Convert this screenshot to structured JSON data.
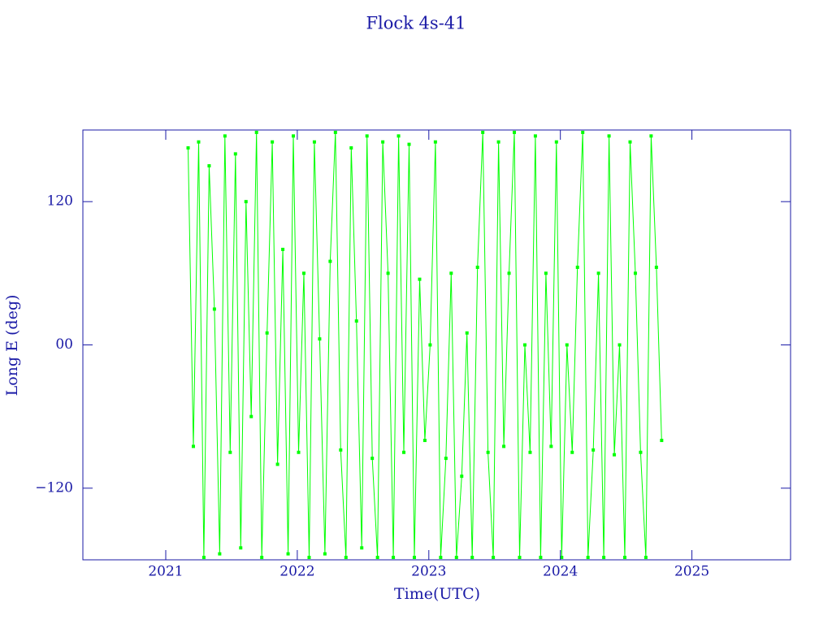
{
  "chart_data": {
    "type": "line",
    "title": "Flock 4s-41",
    "x_label": "Time(UTC)",
    "y_label": "Long E (deg)",
    "color": "#00ff00",
    "xlim": [
      2020.37,
      2025.75
    ],
    "xticks": [
      2021,
      2022,
      2023,
      2024,
      2025
    ],
    "ylim": [
      -180,
      180
    ],
    "yticks": [
      {
        "value": 120,
        "label": "120"
      },
      {
        "value": 0,
        "label": "00"
      },
      {
        "value": -120,
        "label": "−120"
      }
    ],
    "x": [
      2021.17,
      2021.21,
      2021.25,
      2021.29,
      2021.33,
      2021.37,
      2021.41,
      2021.45,
      2021.49,
      2021.53,
      2021.57,
      2021.61,
      2021.65,
      2021.69,
      2021.73,
      2021.77,
      2021.81,
      2021.85,
      2021.89,
      2021.93,
      2021.97,
      2022.01,
      2022.05,
      2022.09,
      2022.13,
      2022.17,
      2022.21,
      2022.25,
      2022.29,
      2022.33,
      2022.37,
      2022.41,
      2022.45,
      2022.49,
      2022.53,
      2022.57,
      2022.61,
      2022.65,
      2022.69,
      2022.73,
      2022.77,
      2022.81,
      2022.85,
      2022.89,
      2022.93,
      2022.97,
      2023.01,
      2023.05,
      2023.09,
      2023.13,
      2023.17,
      2023.21,
      2023.25,
      2023.29,
      2023.33,
      2023.37,
      2023.41,
      2023.45,
      2023.49,
      2023.53,
      2023.57,
      2023.61,
      2023.65,
      2023.69,
      2023.73,
      2023.77,
      2023.81,
      2023.85,
      2023.89,
      2023.93,
      2023.97,
      2024.01,
      2024.05,
      2024.09,
      2024.13,
      2024.17,
      2024.21,
      2024.25,
      2024.29,
      2024.33,
      2024.37,
      2024.41,
      2024.45,
      2024.49,
      2024.53,
      2024.57,
      2024.61,
      2024.65,
      2024.69,
      2024.73,
      2024.77
    ],
    "values": [
      165,
      -85,
      170,
      -178,
      150,
      30,
      -175,
      175,
      -90,
      160,
      -170,
      120,
      -60,
      178,
      -178,
      10,
      170,
      -100,
      80,
      -175,
      175,
      -90,
      60,
      -178,
      170,
      5,
      -175,
      70,
      178,
      -88,
      -178,
      165,
      20,
      -170,
      175,
      -95,
      -178,
      170,
      60,
      -178,
      175,
      -90,
      168,
      -178,
      55,
      -80,
      0,
      170,
      -178,
      -95,
      60,
      -178,
      -110,
      10,
      -178,
      65,
      178,
      -90,
      -178,
      170,
      -85,
      60,
      178,
      -178,
      0,
      -90,
      175,
      -178,
      60,
      -85,
      170,
      -178,
      0,
      -90,
      65,
      178,
      -178,
      -88,
      60,
      -178,
      175,
      -92,
      0,
      -178,
      170,
      60,
      -90,
      -178,
      175,
      65,
      -80
    ]
  }
}
